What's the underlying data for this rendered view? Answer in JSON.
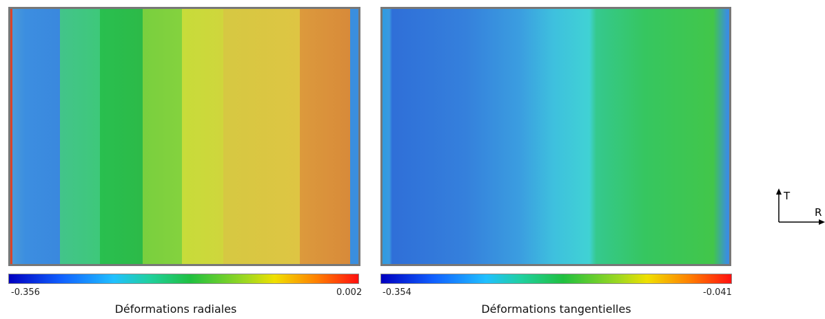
{
  "panels": [
    {
      "min_label": "-0.356",
      "max_label": "0.002",
      "caption": "Déformations radiales"
    },
    {
      "min_label": "-0.354",
      "max_label": "-0.041",
      "caption": "Déformations tangentielles"
    }
  ],
  "axes": {
    "vertical": "T",
    "horizontal": "R"
  }
}
